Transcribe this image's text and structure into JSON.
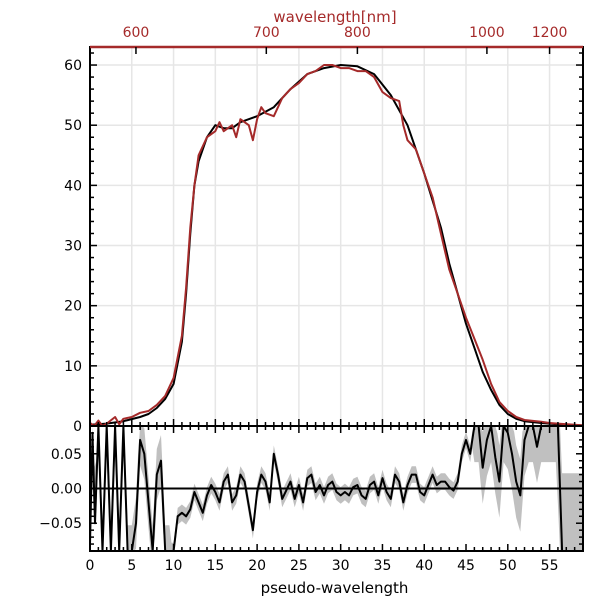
{
  "chart_data": {
    "type": "line",
    "x_axis": {
      "label": "pseudo-wavelength",
      "range": [
        0,
        59
      ],
      "ticks": [
        0,
        5,
        10,
        15,
        20,
        25,
        30,
        35,
        40,
        45,
        50,
        55
      ]
    },
    "top_axis": {
      "label": "wavelength[nm]",
      "color": "#a52a2a",
      "ticks": [
        {
          "label": "600",
          "x": 5.5
        },
        {
          "label": "700",
          "x": 21.1
        },
        {
          "label": "800",
          "x": 32.0
        },
        {
          "label": "1000",
          "x": 47.5
        },
        {
          "label": "1200",
          "x": 55.0
        }
      ]
    },
    "top_panel": {
      "ylim": [
        0,
        63
      ],
      "yticks": [
        0,
        10,
        20,
        30,
        40,
        50,
        60
      ],
      "grid": true,
      "series": [
        {
          "color": "#000000",
          "points": [
            [
              0,
              0.2
            ],
            [
              2,
              0.4
            ],
            [
              4,
              0.8
            ],
            [
              6,
              1.5
            ],
            [
              7,
              2
            ],
            [
              8,
              3
            ],
            [
              9,
              4.5
            ],
            [
              10,
              7
            ],
            [
              11,
              14
            ],
            [
              11.5,
              22
            ],
            [
              12,
              32
            ],
            [
              12.5,
              40
            ],
            [
              13,
              44
            ],
            [
              14,
              48
            ],
            [
              15,
              50
            ],
            [
              16,
              49.5
            ],
            [
              17,
              49.5
            ],
            [
              18,
              50.5
            ],
            [
              20,
              51.5
            ],
            [
              22,
              53
            ],
            [
              24,
              56
            ],
            [
              26,
              58.5
            ],
            [
              28,
              59.5
            ],
            [
              30,
              60
            ],
            [
              32,
              59.8
            ],
            [
              34,
              58.5
            ],
            [
              36,
              55
            ],
            [
              38,
              50
            ],
            [
              40,
              42
            ],
            [
              42,
              33
            ],
            [
              43,
              27
            ],
            [
              44,
              22
            ],
            [
              45,
              17
            ],
            [
              46,
              13
            ],
            [
              47,
              9
            ],
            [
              48,
              6
            ],
            [
              49,
              3.5
            ],
            [
              50,
              2
            ],
            [
              51,
              1.2
            ],
            [
              52,
              0.8
            ],
            [
              54,
              0.5
            ],
            [
              56,
              0.3
            ],
            [
              59,
              0.1
            ]
          ]
        },
        {
          "color": "#a52a2a",
          "points": [
            [
              0,
              0.5
            ],
            [
              0.5,
              0
            ],
            [
              1,
              0.9
            ],
            [
              1.5,
              0
            ],
            [
              2,
              0.4
            ],
            [
              3,
              1.5
            ],
            [
              3.5,
              0.3
            ],
            [
              4,
              1.2
            ],
            [
              5,
              1.5
            ],
            [
              6,
              2.2
            ],
            [
              7,
              2.5
            ],
            [
              8,
              3.5
            ],
            [
              9,
              5
            ],
            [
              10,
              8
            ],
            [
              11,
              15
            ],
            [
              11.5,
              23
            ],
            [
              12,
              33
            ],
            [
              12.5,
              40
            ],
            [
              13,
              45
            ],
            [
              14,
              48
            ],
            [
              15,
              49
            ],
            [
              15.5,
              50.5
            ],
            [
              16,
              49
            ],
            [
              17,
              50
            ],
            [
              17.5,
              48
            ],
            [
              18,
              51
            ],
            [
              19,
              50
            ],
            [
              19.5,
              47.5
            ],
            [
              20,
              51
            ],
            [
              20.5,
              53
            ],
            [
              21,
              52
            ],
            [
              22,
              51.5
            ],
            [
              23,
              54.5
            ],
            [
              24,
              56
            ],
            [
              25,
              57
            ],
            [
              26,
              58.5
            ],
            [
              27,
              59
            ],
            [
              28,
              60
            ],
            [
              29,
              60
            ],
            [
              30,
              59.5
            ],
            [
              31,
              59.5
            ],
            [
              32,
              59
            ],
            [
              33,
              59
            ],
            [
              34,
              58
            ],
            [
              35,
              55.5
            ],
            [
              36,
              54.5
            ],
            [
              37,
              54
            ],
            [
              37.5,
              50
            ],
            [
              38,
              47.5
            ],
            [
              39,
              46
            ],
            [
              40,
              42
            ],
            [
              41,
              38
            ],
            [
              42,
              32
            ],
            [
              43,
              26
            ],
            [
              44,
              22
            ],
            [
              45,
              18
            ],
            [
              46,
              14.5
            ],
            [
              47,
              11
            ],
            [
              48,
              7
            ],
            [
              49,
              4
            ],
            [
              50,
              2.5
            ],
            [
              51,
              1.5
            ],
            [
              52,
              1
            ],
            [
              54,
              0.7
            ],
            [
              55,
              0.5
            ],
            [
              56,
              0.4
            ],
            [
              58,
              0.2
            ],
            [
              59,
              0.1
            ]
          ]
        }
      ]
    },
    "bottom_panel": {
      "ylim": [
        -0.09,
        0.09
      ],
      "yticks": [
        -0.05,
        0,
        0.05
      ],
      "ytick_labels": [
        "−0.05",
        "0.00",
        "0.05"
      ],
      "band_color": "#c0c0c0",
      "band_halfwidth": 0.012,
      "band_edges_extra": [
        {
          "from": 0,
          "to": 9.5,
          "extra": 0.025
        },
        {
          "from": 46,
          "to": 56,
          "extra": 0.04
        },
        {
          "from": 56,
          "to": 59,
          "extra": 0.1
        }
      ],
      "zero_line": true,
      "series": {
        "color": "#000000",
        "points": [
          [
            0,
            -0.08
          ],
          [
            0.3,
            0.08
          ],
          [
            0.6,
            -0.05
          ],
          [
            1,
            0.09
          ],
          [
            1.5,
            -0.09
          ],
          [
            2,
            0.09
          ],
          [
            2.5,
            -0.09
          ],
          [
            3,
            0.09
          ],
          [
            3.5,
            -0.09
          ],
          [
            4,
            0.09
          ],
          [
            4.5,
            -0.09
          ],
          [
            5,
            -0.09
          ],
          [
            5.5,
            -0.05
          ],
          [
            6,
            0.07
          ],
          [
            6.5,
            0.05
          ],
          [
            7,
            -0.02
          ],
          [
            7.5,
            -0.09
          ],
          [
            8,
            0.02
          ],
          [
            8.5,
            0.04
          ],
          [
            9,
            -0.09
          ],
          [
            9.5,
            -0.09
          ],
          [
            10,
            -0.09
          ],
          [
            10.5,
            -0.04
          ],
          [
            11,
            -0.035
          ],
          [
            11.5,
            -0.04
          ],
          [
            12,
            -0.03
          ],
          [
            12.5,
            -0.005
          ],
          [
            13,
            -0.02
          ],
          [
            13.5,
            -0.035
          ],
          [
            14,
            -0.01
          ],
          [
            14.5,
            0.005
          ],
          [
            15,
            -0.005
          ],
          [
            15.5,
            -0.02
          ],
          [
            16,
            0.01
          ],
          [
            16.5,
            0.02
          ],
          [
            17,
            -0.02
          ],
          [
            17.5,
            -0.01
          ],
          [
            18,
            0.02
          ],
          [
            18.5,
            0.01
          ],
          [
            19,
            -0.025
          ],
          [
            19.5,
            -0.06
          ],
          [
            20,
            -0.005
          ],
          [
            20.5,
            0.02
          ],
          [
            21,
            0.01
          ],
          [
            21.5,
            -0.02
          ],
          [
            22,
            0.05
          ],
          [
            22.5,
            0.02
          ],
          [
            23,
            -0.015
          ],
          [
            24,
            0.01
          ],
          [
            24.5,
            -0.015
          ],
          [
            25,
            0.005
          ],
          [
            25.5,
            -0.02
          ],
          [
            26,
            0.015
          ],
          [
            26.5,
            0.02
          ],
          [
            27,
            -0.005
          ],
          [
            27.5,
            0.005
          ],
          [
            28,
            -0.01
          ],
          [
            28.5,
            0.005
          ],
          [
            29,
            0.01
          ],
          [
            29.5,
            -0.005
          ],
          [
            30,
            -0.01
          ],
          [
            30.5,
            -0.005
          ],
          [
            31,
            -0.01
          ],
          [
            31.5,
            0.002
          ],
          [
            32,
            0.005
          ],
          [
            32.5,
            -0.01
          ],
          [
            33,
            -0.015
          ],
          [
            33.5,
            0.005
          ],
          [
            34,
            0.01
          ],
          [
            34.5,
            -0.01
          ],
          [
            35,
            0.015
          ],
          [
            35.5,
            -0.005
          ],
          [
            36,
            -0.015
          ],
          [
            36.5,
            0.02
          ],
          [
            37,
            0.01
          ],
          [
            37.5,
            -0.02
          ],
          [
            38,
            0.005
          ],
          [
            38.5,
            0.02
          ],
          [
            39,
            0.02
          ],
          [
            39.5,
            -0.005
          ],
          [
            40,
            -0.01
          ],
          [
            40.5,
            0.005
          ],
          [
            41,
            0.02
          ],
          [
            41.5,
            0.005
          ],
          [
            42,
            0.01
          ],
          [
            42.5,
            0.01
          ],
          [
            43,
            0.002
          ],
          [
            43.5,
            -0.003
          ],
          [
            44,
            0.01
          ],
          [
            44.5,
            0.05
          ],
          [
            45,
            0.07
          ],
          [
            45.5,
            0.05
          ],
          [
            46,
            0.09
          ],
          [
            46.5,
            0.09
          ],
          [
            47,
            0.03
          ],
          [
            47.5,
            0.07
          ],
          [
            48,
            0.09
          ],
          [
            48.5,
            0.045
          ],
          [
            49,
            0.01
          ],
          [
            49.5,
            0.09
          ],
          [
            50,
            0.08
          ],
          [
            50.5,
            0.05
          ],
          [
            51,
            0.01
          ],
          [
            51.5,
            -0.01
          ],
          [
            52,
            0.07
          ],
          [
            52.5,
            0.09
          ],
          [
            53,
            0.09
          ],
          [
            53.5,
            0.06
          ],
          [
            54,
            0.09
          ],
          [
            55,
            0.09
          ],
          [
            56,
            0.09
          ],
          [
            56.5,
            -0.09
          ],
          [
            57,
            -0.09
          ],
          [
            58,
            -0.09
          ],
          [
            59,
            -0.09
          ]
        ]
      }
    }
  }
}
